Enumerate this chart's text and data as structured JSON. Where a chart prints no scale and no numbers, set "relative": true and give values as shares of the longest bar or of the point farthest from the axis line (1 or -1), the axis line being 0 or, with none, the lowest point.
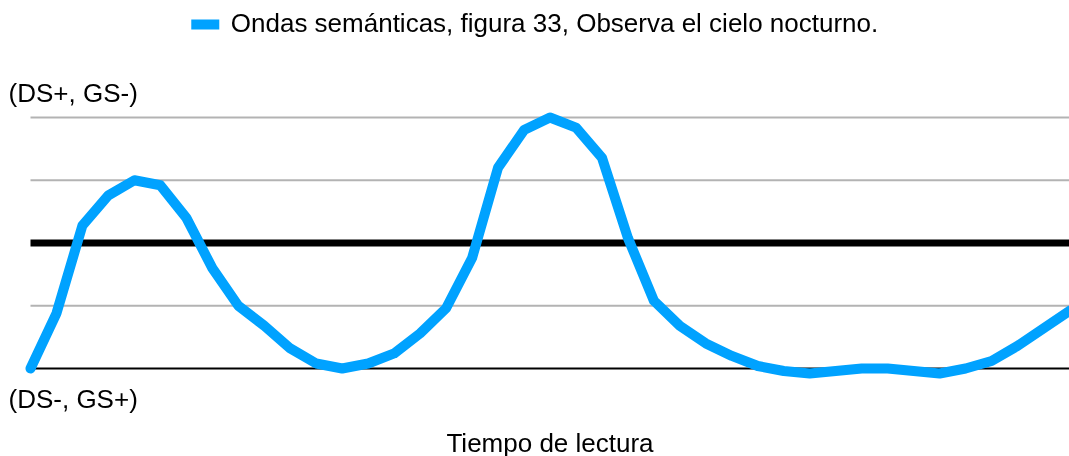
{
  "chart_data": {
    "type": "line",
    "xlabel": "Tiempo de lectura",
    "annotations": [
      "(DS+, GS-)",
      "(DS-, GS+)"
    ],
    "categories": [
      null,
      null,
      null,
      null,
      null,
      null,
      null,
      null,
      null,
      null,
      null,
      null,
      null,
      null,
      null,
      null,
      null,
      null,
      null,
      null,
      null,
      null,
      null,
      null,
      null,
      null,
      null,
      null,
      null,
      null,
      null,
      null,
      null,
      null,
      null,
      null,
      null,
      null,
      null,
      null,
      null
    ],
    "series": [
      {
        "name": "Ondas semánticas, figura 33, Observa el cielo nocturno.",
        "color": "#00a2ff",
        "values": [
          0,
          0.22,
          0.57,
          0.69,
          0.75,
          0.73,
          0.6,
          0.4,
          0.25,
          0.17,
          0.08,
          0.02,
          0,
          0.02,
          0.06,
          0.14,
          0.24,
          0.44,
          0.8,
          0.95,
          1,
          0.96,
          0.84,
          0.52,
          0.27,
          0.17,
          0.1,
          0.05,
          0.01,
          -0.01,
          -0.02,
          -0.01,
          0,
          0,
          -0.01,
          -0.02,
          0,
          0.03,
          0.09,
          0.16,
          0.23
        ]
      }
    ],
    "relative": true,
    "legend": "top",
    "ref_lines": [
      {
        "axis": "y",
        "value": 0.25,
        "color": "#b3b3b3"
      },
      {
        "axis": "y",
        "value": 0.5,
        "color": "#000000"
      },
      {
        "axis": "y",
        "value": 0.75,
        "color": "#b3b3b3"
      },
      {
        "axis": "y",
        "value": 1,
        "color": "#b3b3b3"
      }
    ]
  }
}
